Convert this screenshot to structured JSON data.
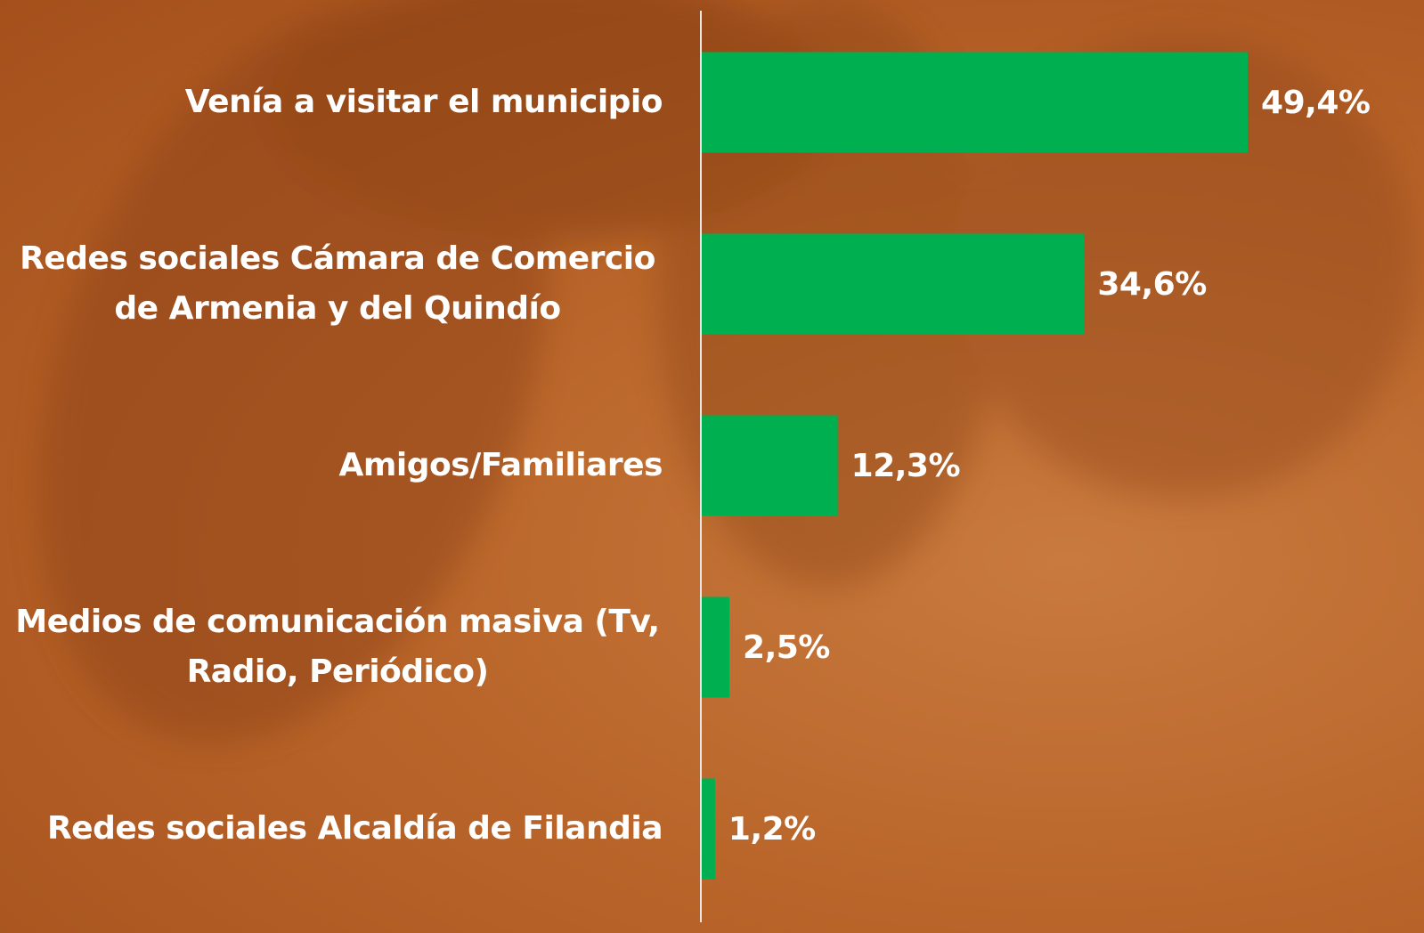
{
  "chart_data": {
    "type": "bar",
    "orientation": "horizontal",
    "categories": [
      "Venía a visitar el municipio",
      "Redes sociales Cámara de Comercio de Armenia y del Quindío",
      "Amigos/Familiares",
      "Medios de comunicación masiva (Tv, Radio, Periódico)",
      "Redes sociales Alcaldía de Filandia"
    ],
    "values": [
      49.4,
      34.6,
      12.3,
      2.5,
      1.2
    ],
    "value_labels": [
      "49,4%",
      "34,6%",
      "12,3%",
      "2,5%",
      "1,2%"
    ],
    "color": "#00b050"
  }
}
